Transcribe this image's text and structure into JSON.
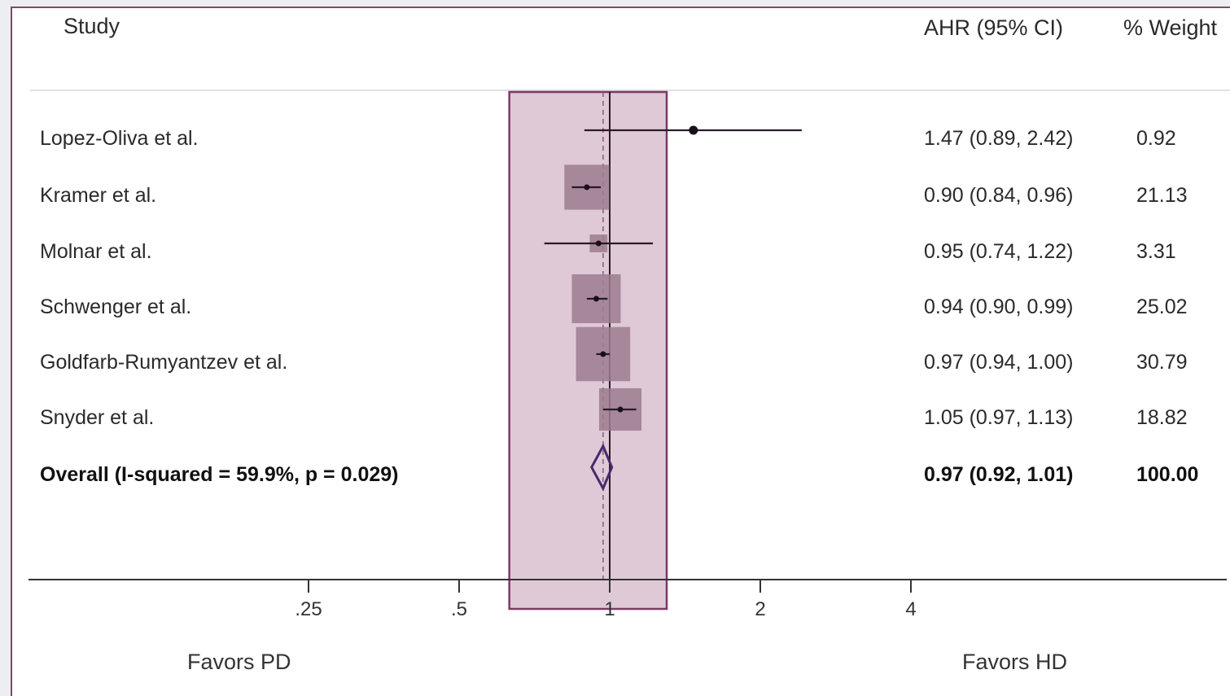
{
  "headers": {
    "study": "Study",
    "ahr": "AHR (95% CI)",
    "weight": "% Weight"
  },
  "chart_data": {
    "type": "forest",
    "xscale": "log",
    "xlim": [
      0.2,
      4.5
    ],
    "xticks": [
      {
        "value": 0.25,
        "label": ".25"
      },
      {
        "value": 0.5,
        "label": ".5"
      },
      {
        "value": 1,
        "label": "1"
      },
      {
        "value": 2,
        "label": "2"
      },
      {
        "value": 4,
        "label": "4"
      }
    ],
    "null_line": 1,
    "pooled_line": 0.97,
    "highlight_band": [
      0.63,
      1.3
    ],
    "studies": [
      {
        "name": "Lopez-Oliva et al.",
        "est": 1.47,
        "lo": 0.89,
        "hi": 2.42,
        "ci_text": "1.47 (0.89, 2.42)",
        "weight": 0.92,
        "weight_text": "0.92"
      },
      {
        "name": "Kramer et al.",
        "est": 0.9,
        "lo": 0.84,
        "hi": 0.96,
        "ci_text": "0.90 (0.84, 0.96)",
        "weight": 21.13,
        "weight_text": "21.13"
      },
      {
        "name": "Molnar  et al.",
        "est": 0.95,
        "lo": 0.74,
        "hi": 1.22,
        "ci_text": "0.95 (0.74, 1.22)",
        "weight": 3.31,
        "weight_text": "3.31"
      },
      {
        "name": "Schwenger et al.",
        "est": 0.94,
        "lo": 0.9,
        "hi": 0.99,
        "ci_text": "0.94 (0.90, 0.99)",
        "weight": 25.02,
        "weight_text": "25.02"
      },
      {
        "name": "Goldfarb-Rumyantzev et al.",
        "est": 0.97,
        "lo": 0.94,
        "hi": 1.0,
        "ci_text": "0.97 (0.94, 1.00)",
        "weight": 30.79,
        "weight_text": "30.79"
      },
      {
        "name": "Snyder et al.",
        "est": 1.05,
        "lo": 0.97,
        "hi": 1.13,
        "ci_text": "1.05 (0.97, 1.13)",
        "weight": 18.82,
        "weight_text": "18.82"
      }
    ],
    "overall": {
      "name": "Overall  (I-squared = 59.9%, p = 0.029)",
      "est": 0.97,
      "lo": 0.92,
      "hi": 1.01,
      "ci_text": "0.97 (0.92, 1.01)",
      "weight_text": "100.00"
    },
    "favor_left": "Favors PD",
    "favor_right": "Favors HD",
    "colors": {
      "band_fill": "#d9bfd0",
      "band_stroke": "#7a3a66",
      "box": "#9c7c8f",
      "line": "#2a1a28",
      "diamond": "#4a2a6a"
    }
  }
}
